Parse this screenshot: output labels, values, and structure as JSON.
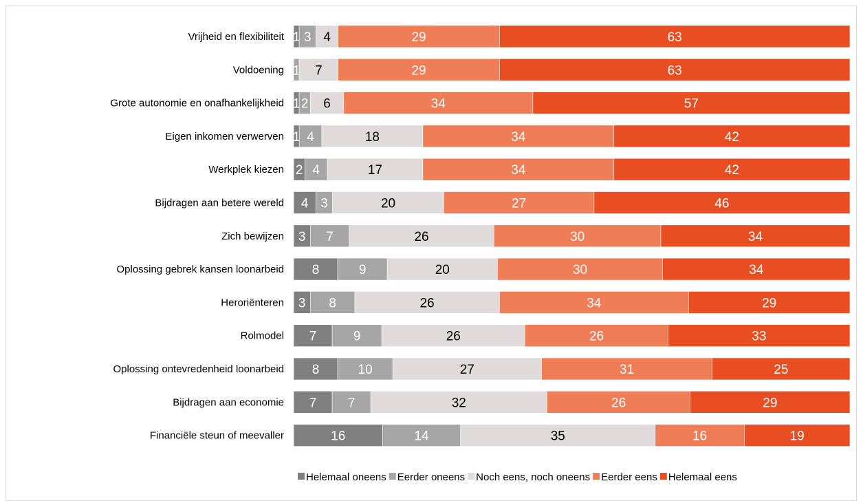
{
  "chart_data": {
    "type": "bar",
    "orientation": "horizontal",
    "stacked": true,
    "percent_stacked": true,
    "categories": [
      "Vrijheid en flexibiliteit",
      "Voldoening",
      "Grote autonomie en onafhankelijkheid",
      "Eigen inkomen verwerven",
      "Werkplek kiezen",
      "Bijdragen aan betere wereld",
      "Zich bewijzen",
      "Oplossing gebrek kansen loonarbeid",
      "Heroriënteren",
      "Rolmodel",
      "Oplossing ontevredenheid loonarbeid",
      "Bijdragen aan economie",
      "Financiële steun of meevaller"
    ],
    "series": [
      {
        "name": "Helemaal oneens",
        "color": "#808080",
        "label_color": "#ffffff",
        "values": [
          1,
          0,
          1,
          1,
          2,
          4,
          3,
          8,
          3,
          7,
          8,
          7,
          16
        ]
      },
      {
        "name": "Eerder oneens",
        "color": "#a6a6a6",
        "label_color": "#ffffff",
        "values": [
          3,
          1,
          2,
          4,
          4,
          3,
          7,
          9,
          8,
          9,
          10,
          7,
          14
        ]
      },
      {
        "name": "Noch eens, noch oneens",
        "color": "#e0dada",
        "label_color": "#000000",
        "values": [
          4,
          7,
          6,
          18,
          17,
          20,
          26,
          20,
          26,
          26,
          27,
          32,
          35
        ]
      },
      {
        "name": "Eerder eens",
        "color": "#ef7d57",
        "label_color": "#ffffff",
        "values": [
          29,
          29,
          34,
          34,
          34,
          27,
          30,
          30,
          34,
          26,
          31,
          26,
          16
        ]
      },
      {
        "name": "Helemaal eens",
        "color": "#e84e22",
        "label_color": "#ffffff",
        "values": [
          63,
          63,
          57,
          42,
          42,
          46,
          34,
          34,
          29,
          33,
          25,
          29,
          19
        ]
      }
    ],
    "title": "",
    "xlabel": "",
    "ylabel": "",
    "legend_position": "bottom-right",
    "grid": false
  }
}
